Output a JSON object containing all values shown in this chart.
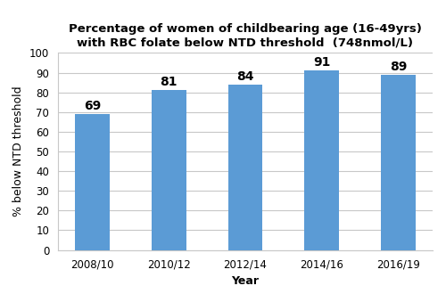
{
  "categories": [
    "2008/10",
    "2010/12",
    "2012/14",
    "2014/16",
    "2016/19"
  ],
  "values": [
    69,
    81,
    84,
    91,
    89
  ],
  "bar_color": "#5B9BD5",
  "title_line1": "Percentage of women of childbearing age (16-49yrs)",
  "title_line2": "with RBC folate below NTD threshold  (748nmol/L)",
  "xlabel": "Year",
  "ylabel": "% below NTD threshold",
  "ylim": [
    0,
    100
  ],
  "yticks": [
    0,
    10,
    20,
    30,
    40,
    50,
    60,
    70,
    80,
    90,
    100
  ],
  "bar_width": 0.45,
  "label_fontsize": 10,
  "title_fontsize": 9.5,
  "axis_label_fontsize": 9,
  "tick_label_fontsize": 8.5,
  "background_color": "#ffffff",
  "grid_color": "#c8c8c8"
}
